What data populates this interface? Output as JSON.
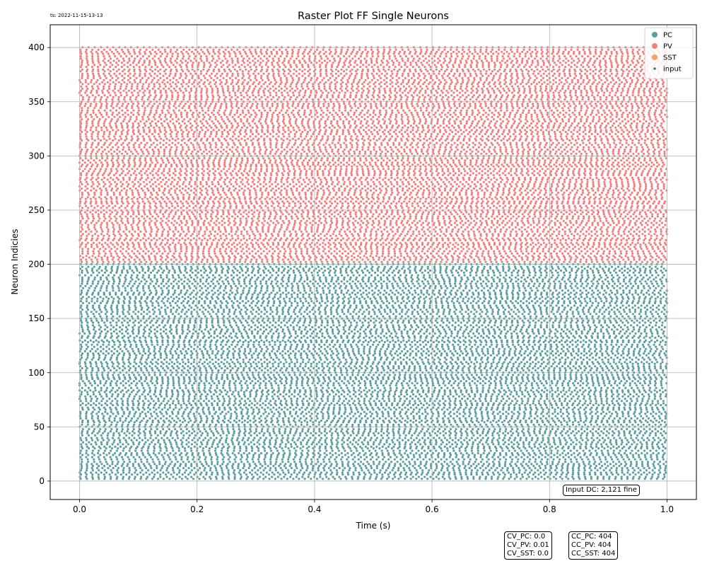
{
  "timestamp": "ts: 2022-11-15-13-13",
  "chart_data": {
    "type": "scatter",
    "title": "Raster Plot FF Single Neurons",
    "xlabel": "Time (s)",
    "ylabel": "Neuron Indicies",
    "xlim": [
      -0.05,
      1.05
    ],
    "ylim": [
      -17,
      421
    ],
    "xticks": [
      0.0,
      0.2,
      0.4,
      0.6,
      0.8,
      1.0
    ],
    "xtick_labels": [
      "0.0",
      "0.2",
      "0.4",
      "0.6",
      "0.8",
      "1.0"
    ],
    "yticks": [
      0,
      50,
      100,
      150,
      200,
      250,
      300,
      350,
      400
    ],
    "ytick_labels": [
      "0",
      "50",
      "100",
      "150",
      "200",
      "250",
      "300",
      "350",
      "400"
    ],
    "grid": true,
    "legend_position": "top-right",
    "legend": [
      "PC",
      "PV",
      "SST",
      "input"
    ],
    "series": [
      {
        "name": "PC",
        "color": "#5f9ea0",
        "neuron_range": [
          0,
          200
        ],
        "time_range": [
          0.0,
          1.0
        ]
      },
      {
        "name": "PV",
        "color": "#f08080",
        "neuron_range": [
          200,
          400
        ],
        "time_range": [
          0.0,
          1.0
        ]
      },
      {
        "name": "SST",
        "color": "#f4a460",
        "neuron_range": null
      },
      {
        "name": "input",
        "color": "#4e6a85",
        "neuron_range": null
      }
    ],
    "annotations": {
      "input_dc": "Input DC: 2,121 fine",
      "cv": [
        "CV_PC: 0.0",
        "CV_PV: 0.01",
        "CV_SST: 0.0"
      ],
      "cc": [
        "CC_PC: 404",
        "CC_PV: 404",
        "CC_SST: 404"
      ]
    }
  }
}
